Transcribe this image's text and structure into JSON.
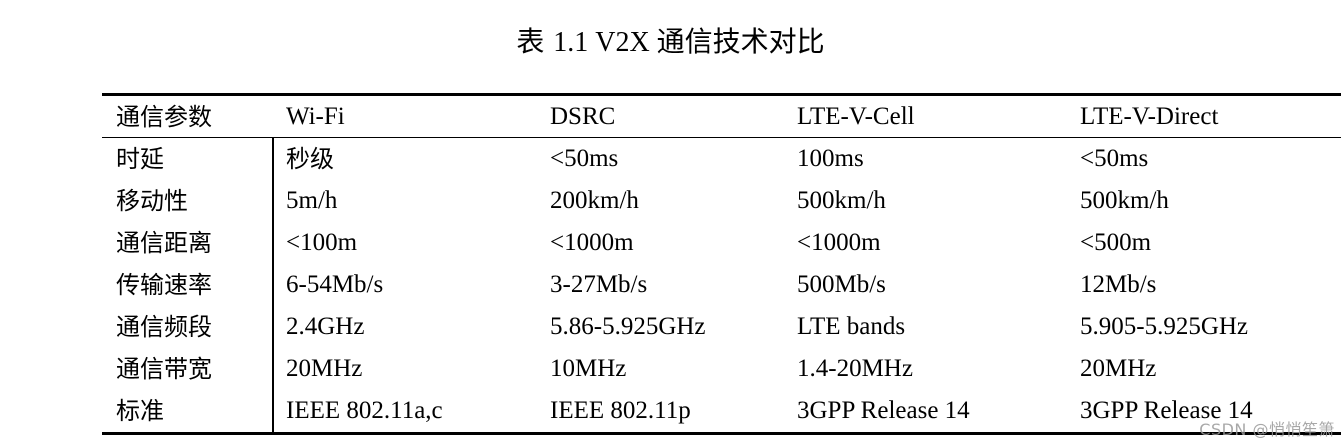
{
  "caption": {
    "prefix": "表 ",
    "number": "1.1 V2X ",
    "title": "通信技术对比"
  },
  "table": {
    "headers": [
      "通信参数",
      "Wi-Fi",
      "DSRC",
      "LTE-V-Cell",
      "LTE-V-Direct"
    ],
    "rows": [
      [
        "时延",
        "秒级",
        "<50ms",
        "100ms",
        "<50ms"
      ],
      [
        "移动性",
        "5m/h",
        "200km/h",
        "500km/h",
        "500km/h"
      ],
      [
        "通信距离",
        "<100m",
        "<1000m",
        "<1000m",
        "<500m"
      ],
      [
        "传输速率",
        "6-54Mb/s",
        "3-27Mb/s",
        "500Mb/s",
        "12Mb/s"
      ],
      [
        "通信频段",
        "2.4GHz",
        "5.86-5.925GHz",
        "LTE bands",
        "5.905-5.925GHz"
      ],
      [
        "通信带宽",
        "20MHz",
        "10MHz",
        "1.4-20MHz",
        "20MHz"
      ],
      [
        "标准",
        "IEEE 802.11a,c",
        "IEEE 802.11p",
        "3GPP Release 14",
        "3GPP Release 14"
      ]
    ]
  },
  "watermark": "CSDN @悄悄笙箫"
}
